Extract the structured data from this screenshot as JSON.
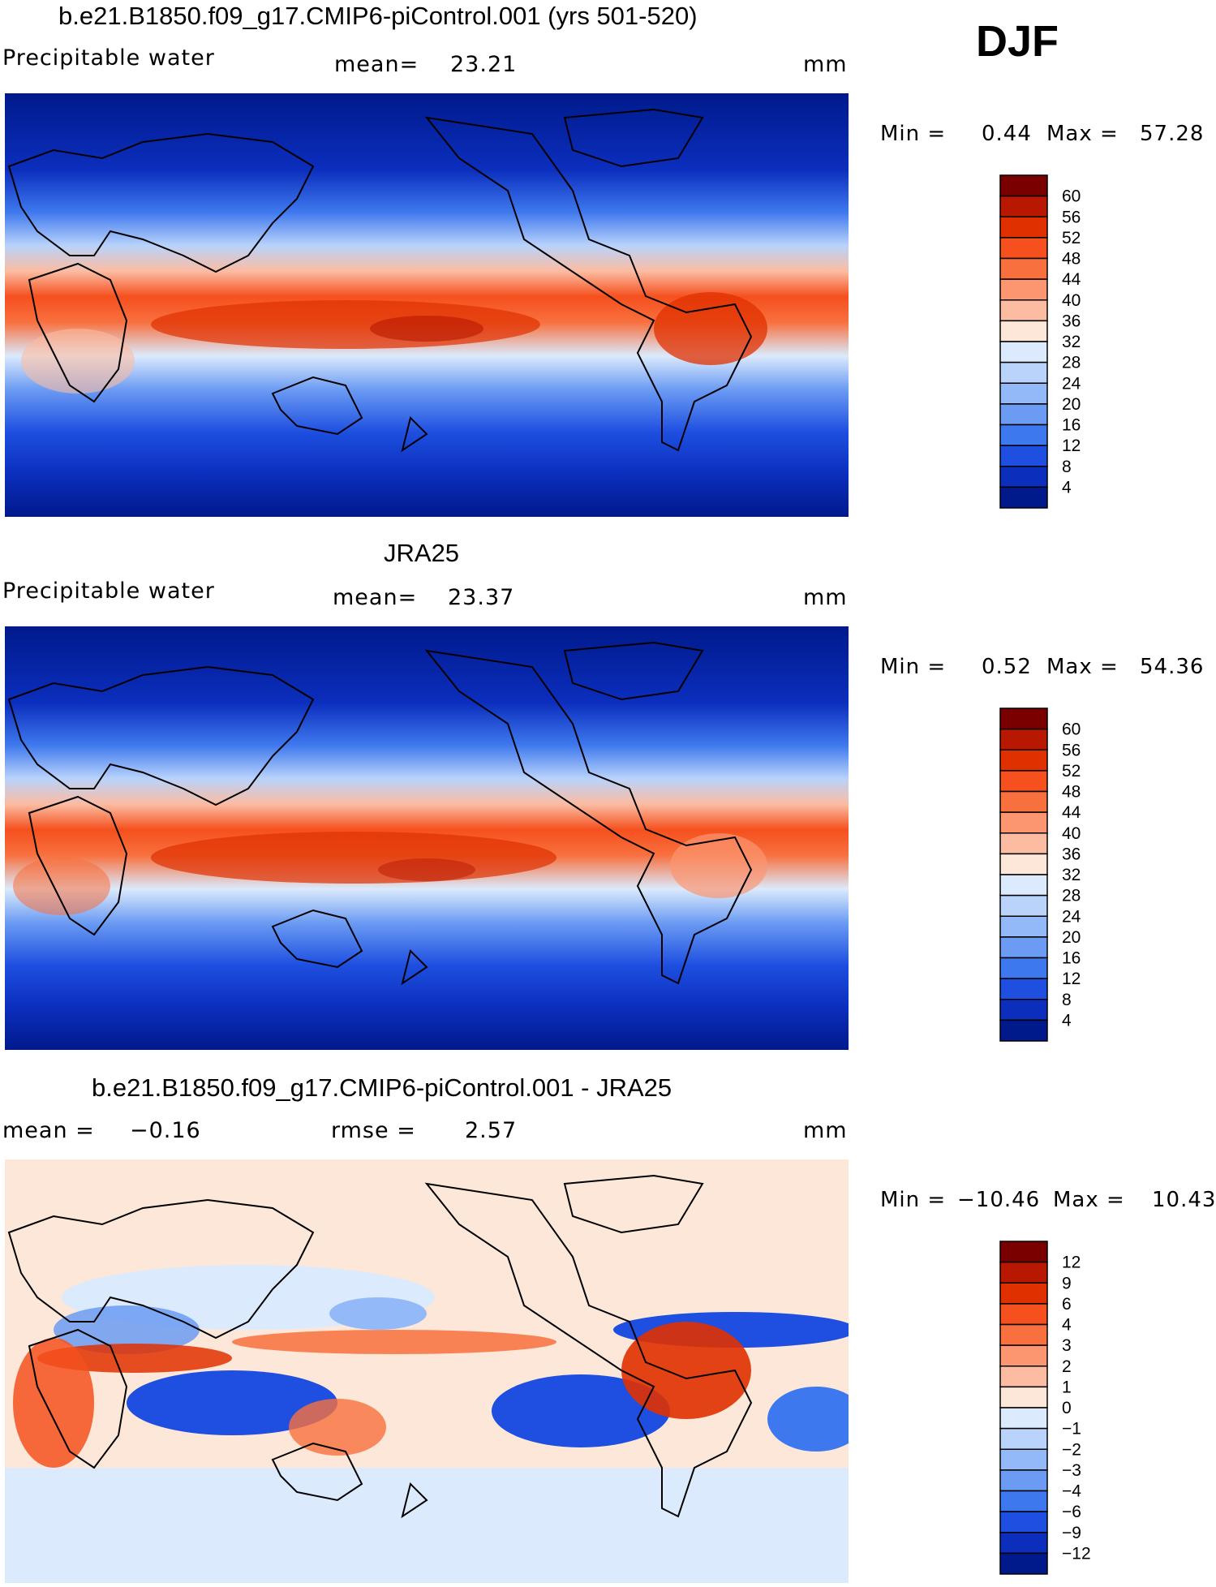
{
  "season": "DJF",
  "panels": [
    {
      "title": "b.e21.B1850.f09_g17.CMIP6-piControl.001 (yrs 501-520)",
      "variable": "Precipitable water",
      "stat1_label": "mean=",
      "stat1_value": "23.21",
      "units": "mm",
      "min_label": "Min =",
      "min_value": "0.44",
      "max_label": "Max =",
      "max_value": "57.28"
    },
    {
      "title": "JRA25",
      "variable": "Precipitable water",
      "stat1_label": "mean=",
      "stat1_value": "23.37",
      "units": "mm",
      "min_label": "Min =",
      "min_value": "0.52",
      "max_label": "Max =",
      "max_value": "54.36"
    },
    {
      "title": "b.e21.B1850.f09_g17.CMIP6-piControl.001 - JRA25",
      "stat1_label": "mean =",
      "stat1_value": "−0.16",
      "stat2_label": "rmse =",
      "stat2_value": "2.57",
      "units": "mm",
      "min_label": "Min =",
      "min_value": "−10.46",
      "max_label": "Max =",
      "max_value": "10.43"
    }
  ],
  "colorbars": [
    {
      "labels": [
        "60",
        "56",
        "52",
        "48",
        "44",
        "40",
        "36",
        "32",
        "28",
        "24",
        "20",
        "16",
        "12",
        "8",
        "4"
      ],
      "colors": [
        "#7a0000",
        "#b81800",
        "#e03000",
        "#f5501e",
        "#f8703e",
        "#fb9670",
        "#fcbca2",
        "#fde7d8",
        "#dbeafc",
        "#b9d3fb",
        "#94b9f8",
        "#6b9bf3",
        "#3e78ee",
        "#1e4fe0",
        "#0b2ebd",
        "#001a8c"
      ]
    },
    {
      "labels": [
        "60",
        "56",
        "52",
        "48",
        "44",
        "40",
        "36",
        "32",
        "28",
        "24",
        "20",
        "16",
        "12",
        "8",
        "4"
      ],
      "colors": [
        "#7a0000",
        "#b81800",
        "#e03000",
        "#f5501e",
        "#f8703e",
        "#fb9670",
        "#fcbca2",
        "#fde7d8",
        "#dbeafc",
        "#b9d3fb",
        "#94b9f8",
        "#6b9bf3",
        "#3e78ee",
        "#1e4fe0",
        "#0b2ebd",
        "#001a8c"
      ]
    },
    {
      "labels": [
        "12",
        "9",
        "6",
        "4",
        "3",
        "2",
        "1",
        "0",
        "−1",
        "−2",
        "−3",
        "−4",
        "−6",
        "−9",
        "−12"
      ],
      "colors": [
        "#7a0000",
        "#b81800",
        "#e03000",
        "#f5501e",
        "#f8703e",
        "#fb9670",
        "#fcbca2",
        "#fde7d8",
        "#dbeafc",
        "#b9d3fb",
        "#94b9f8",
        "#6b9bf3",
        "#3e78ee",
        "#1e4fe0",
        "#0b2ebd",
        "#001a8c"
      ]
    }
  ]
}
